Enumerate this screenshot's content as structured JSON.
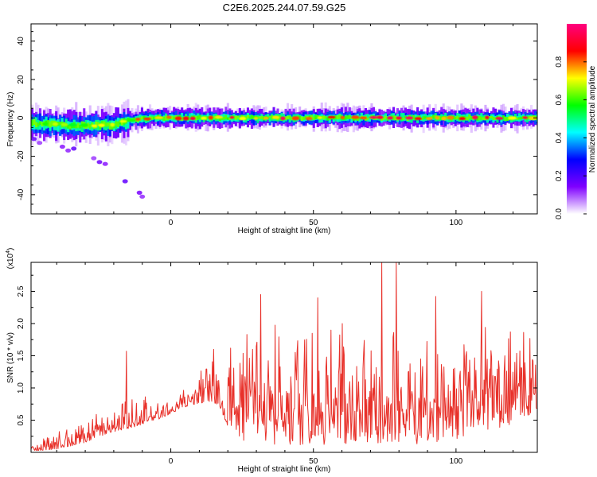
{
  "title": "C2E6.2025.244.07.59.G25",
  "chart_data": [
    {
      "type": "heatmap",
      "name": "spectrogram",
      "xlabel": "Height of straight line (km)",
      "ylabel": "Frequency (Hz)",
      "xlim": [
        -49,
        128.5
      ],
      "ylim": [
        -50,
        49
      ],
      "xticks": [
        0,
        50,
        100
      ],
      "xtick_labels": [
        "0",
        "50",
        "100"
      ],
      "yticks": [
        40,
        20,
        0,
        -20,
        -40
      ],
      "ytick_labels": [
        "40",
        "20",
        "0",
        "-20",
        "-40"
      ],
      "ridge": {
        "x": [
          -49,
          -40,
          -35,
          -30,
          -25,
          -20,
          -15,
          -10,
          -5,
          0,
          10,
          20,
          40,
          60,
          80,
          100,
          120,
          128.5
        ],
        "frequency": [
          -3,
          -3.5,
          -4,
          -4,
          -4,
          -3.5,
          -1.5,
          -0.3,
          0,
          0,
          0,
          0,
          0,
          0,
          0,
          0,
          0,
          0
        ]
      },
      "scatter_patches": [
        {
          "x": -48,
          "frequency": -11
        },
        {
          "x": -46,
          "frequency": -13
        },
        {
          "x": -38,
          "frequency": -15
        },
        {
          "x": -36,
          "frequency": -17
        },
        {
          "x": -34,
          "frequency": -16
        },
        {
          "x": -27,
          "frequency": -21
        },
        {
          "x": -25,
          "frequency": -23
        },
        {
          "x": -23,
          "frequency": -24
        },
        {
          "x": -16,
          "frequency": -33
        },
        {
          "x": -11,
          "frequency": -39
        },
        {
          "x": -10,
          "frequency": -41
        }
      ]
    },
    {
      "type": "colorbar",
      "name": "amplitude-colorbar",
      "label": "Normalized spectral amplitude",
      "range": [
        0,
        1
      ],
      "ticks": [
        0,
        0.2,
        0.4,
        0.6,
        0.8
      ],
      "tick_labels": [
        "0.0",
        "0.2",
        "0.4",
        "0.6",
        "0.8"
      ],
      "colors": [
        "#ffffff",
        "#7f00ff",
        "#0000ff",
        "#00ffff",
        "#00ff00",
        "#ffff00",
        "#ff0000",
        "#ff007f"
      ]
    },
    {
      "type": "line",
      "name": "snr",
      "xlabel": "Height of straight line (km)",
      "ylabel": "SNR (10 * v/v)",
      "multiplier": "(x10",
      "multiplier_exp": "4",
      "multiplier_close": ")",
      "xlim": [
        -49,
        128.5
      ],
      "ylim": [
        0,
        2.95
      ],
      "xticks": [
        0,
        50,
        100
      ],
      "xtick_labels": [
        "0",
        "50",
        "100"
      ],
      "yticks": [
        0.5,
        1.0,
        1.5,
        2.0,
        2.5
      ],
      "ytick_labels": [
        "0.5",
        "1.0",
        "1.5",
        "2.0",
        "2.5"
      ],
      "color": "#e8312a",
      "envelope": {
        "x": [
          -49,
          -40,
          -30,
          -22,
          -17,
          -12,
          -5,
          0,
          5,
          10,
          15,
          20,
          25,
          30,
          40,
          50,
          60,
          70,
          75,
          80,
          85,
          90,
          100,
          110,
          120,
          128.5
        ],
        "low": [
          0.02,
          0.05,
          0.15,
          0.3,
          0.35,
          0.4,
          0.5,
          0.6,
          0.7,
          0.75,
          0.8,
          0.4,
          0.15,
          0.1,
          0.1,
          0.1,
          0.1,
          0.1,
          0.1,
          0.1,
          0.1,
          0.15,
          0.2,
          0.3,
          0.45,
          0.6
        ],
        "high": [
          0.15,
          0.4,
          0.55,
          0.8,
          0.95,
          0.85,
          0.9,
          0.9,
          1.05,
          1.35,
          1.5,
          1.8,
          1.9,
          2.2,
          2.1,
          2.0,
          2.1,
          2.1,
          2.2,
          2.3,
          2.2,
          2.1,
          2.05,
          2.3,
          2.2,
          1.9
        ]
      },
      "peaks": [
        {
          "x": -15.5,
          "y": 1.57
        },
        {
          "x": 15,
          "y": 1.6
        },
        {
          "x": 31.5,
          "y": 2.45
        },
        {
          "x": 51.5,
          "y": 2.4
        },
        {
          "x": 74,
          "y": 2.95
        },
        {
          "x": 79,
          "y": 2.95
        },
        {
          "x": 93,
          "y": 2.42
        },
        {
          "x": 109,
          "y": 2.5
        }
      ]
    }
  ]
}
